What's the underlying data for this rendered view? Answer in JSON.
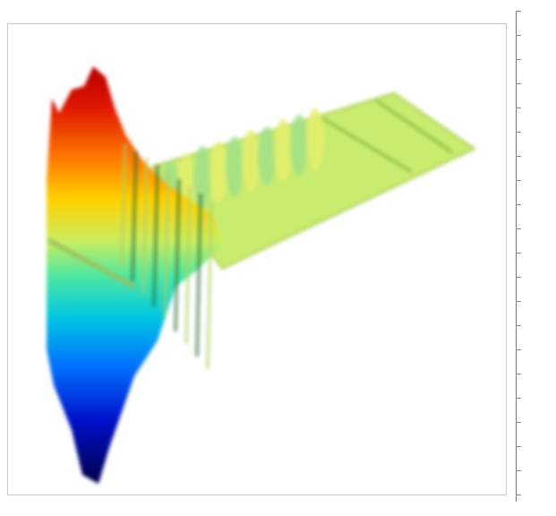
{
  "chart_data": {
    "type": "surface",
    "title": "",
    "colormap": "jet",
    "grid": false,
    "legend": "none",
    "colorbar": {
      "position": "right",
      "labels": []
    },
    "series": [
      {
        "values": [
          0.35,
          0.42,
          0.5,
          0.48,
          0.45,
          0.5,
          0.42,
          0.5,
          0.48,
          0.5
        ]
      }
    ]
  },
  "colors": {
    "background": "#ffffff",
    "frame": "#c8c8c8",
    "plateau": "#c8ec70",
    "peak": "#b40000",
    "trough": "#00006a"
  }
}
